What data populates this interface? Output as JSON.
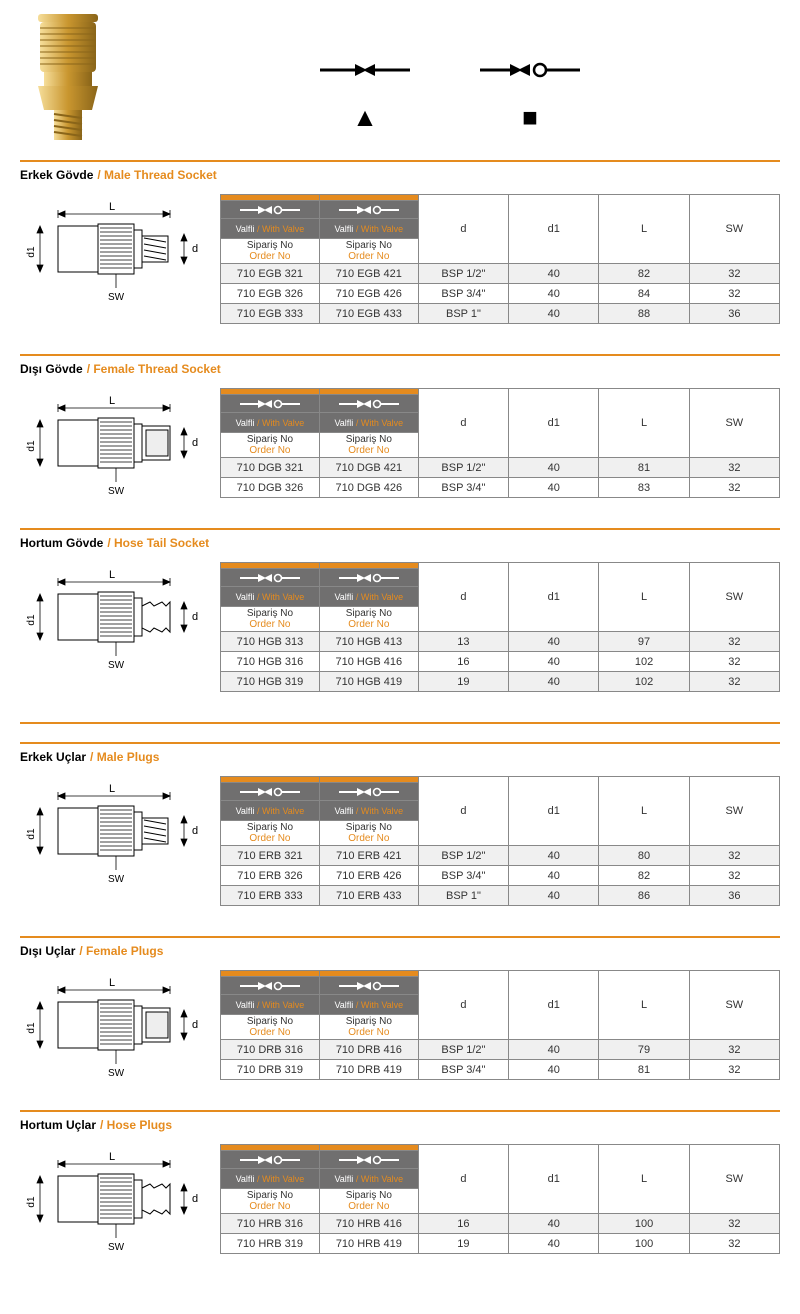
{
  "colors": {
    "accent": "#e58b1e",
    "grey_header": "#706f6f",
    "row_alt": "#f0f0f0",
    "border": "#888888",
    "text": "#333333",
    "brass_light": "#e8c468",
    "brass_dark": "#b88a2e",
    "brass_mid": "#d4a84a"
  },
  "header_labels": {
    "valfli_tr": "Valfli",
    "valfli_en": "/ With Valve",
    "siparis_tr": "Sipariş No",
    "siparis_en": "Order No",
    "d": "d",
    "d1": "d1",
    "L": "L",
    "SW": "SW"
  },
  "diagram_labels": {
    "L": "L",
    "d1": "d1",
    "d": "d",
    "SW": "SW"
  },
  "sections": [
    {
      "id": "egb",
      "title_tr": "Erkek Gövde",
      "title_en": "/ Male Thread Socket",
      "diagram_type": "male_socket",
      "rows": [
        {
          "c1": "710 EGB 321",
          "c2": "710 EGB 421",
          "d": "BSP 1/2\"",
          "d1": "40",
          "L": "82",
          "SW": "32"
        },
        {
          "c1": "710 EGB 326",
          "c2": "710 EGB 426",
          "d": "BSP 3/4\"",
          "d1": "40",
          "L": "84",
          "SW": "32"
        },
        {
          "c1": "710 EGB 333",
          "c2": "710 EGB 433",
          "d": "BSP 1\"",
          "d1": "40",
          "L": "88",
          "SW": "36"
        }
      ]
    },
    {
      "id": "dgb",
      "title_tr": "Dışı Gövde",
      "title_en": "/ Female Thread Socket",
      "diagram_type": "female_socket",
      "rows": [
        {
          "c1": "710 DGB 321",
          "c2": "710 DGB 421",
          "d": "BSP 1/2\"",
          "d1": "40",
          "L": "81",
          "SW": "32"
        },
        {
          "c1": "710 DGB 326",
          "c2": "710 DGB 426",
          "d": "BSP 3/4\"",
          "d1": "40",
          "L": "83",
          "SW": "32"
        }
      ]
    },
    {
      "id": "hgb",
      "title_tr": "Hortum Gövde",
      "title_en": "/ Hose Tail Socket",
      "diagram_type": "hose_socket",
      "rows": [
        {
          "c1": "710 HGB 313",
          "c2": "710 HGB 413",
          "d": "13",
          "d1": "40",
          "L": "97",
          "SW": "32"
        },
        {
          "c1": "710 HGB 316",
          "c2": "710 HGB 416",
          "d": "16",
          "d1": "40",
          "L": "102",
          "SW": "32"
        },
        {
          "c1": "710 HGB 319",
          "c2": "710 HGB 419",
          "d": "19",
          "d1": "40",
          "L": "102",
          "SW": "32"
        }
      ]
    },
    {
      "id": "erb",
      "title_tr": "Erkek Uçlar",
      "title_en": "/ Male Plugs",
      "diagram_type": "male_plug",
      "rows": [
        {
          "c1": "710 ERB 321",
          "c2": "710 ERB 421",
          "d": "BSP 1/2\"",
          "d1": "40",
          "L": "80",
          "SW": "32"
        },
        {
          "c1": "710 ERB 326",
          "c2": "710 ERB 426",
          "d": "BSP 3/4\"",
          "d1": "40",
          "L": "82",
          "SW": "32"
        },
        {
          "c1": "710 ERB 333",
          "c2": "710 ERB 433",
          "d": "BSP 1\"",
          "d1": "40",
          "L": "86",
          "SW": "36"
        }
      ]
    },
    {
      "id": "drb",
      "title_tr": "Dışı Uçlar",
      "title_en": "/ Female Plugs",
      "diagram_type": "female_plug",
      "rows": [
        {
          "c1": "710 DRB 316",
          "c2": "710 DRB 416",
          "d": "BSP 1/2\"",
          "d1": "40",
          "L": "79",
          "SW": "32"
        },
        {
          "c1": "710 DRB 319",
          "c2": "710 DRB 419",
          "d": "BSP 3/4\"",
          "d1": "40",
          "L": "81",
          "SW": "32"
        }
      ]
    },
    {
      "id": "hrb",
      "title_tr": "Hortum Uçlar",
      "title_en": "/ Hose Plugs",
      "diagram_type": "hose_plug",
      "rows": [
        {
          "c1": "710 HRB 316",
          "c2": "710 HRB 416",
          "d": "16",
          "d1": "40",
          "L": "100",
          "SW": "32"
        },
        {
          "c1": "710 HRB 319",
          "c2": "710 HRB 419",
          "d": "19",
          "d1": "40",
          "L": "100",
          "SW": "32"
        }
      ]
    }
  ]
}
